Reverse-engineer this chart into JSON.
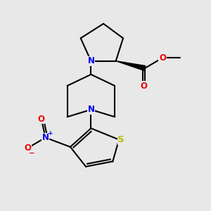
{
  "bg_color": "#e8e8e8",
  "bond_color": "#000000",
  "bond_width": 1.5,
  "atom_colors": {
    "N": "#0000ee",
    "O": "#ee0000",
    "S": "#bbbb00",
    "C": "#000000"
  },
  "font_size_atom": 8.5,
  "wedge_color": "#000000",
  "figsize": [
    3.0,
    3.0
  ],
  "dpi": 100
}
